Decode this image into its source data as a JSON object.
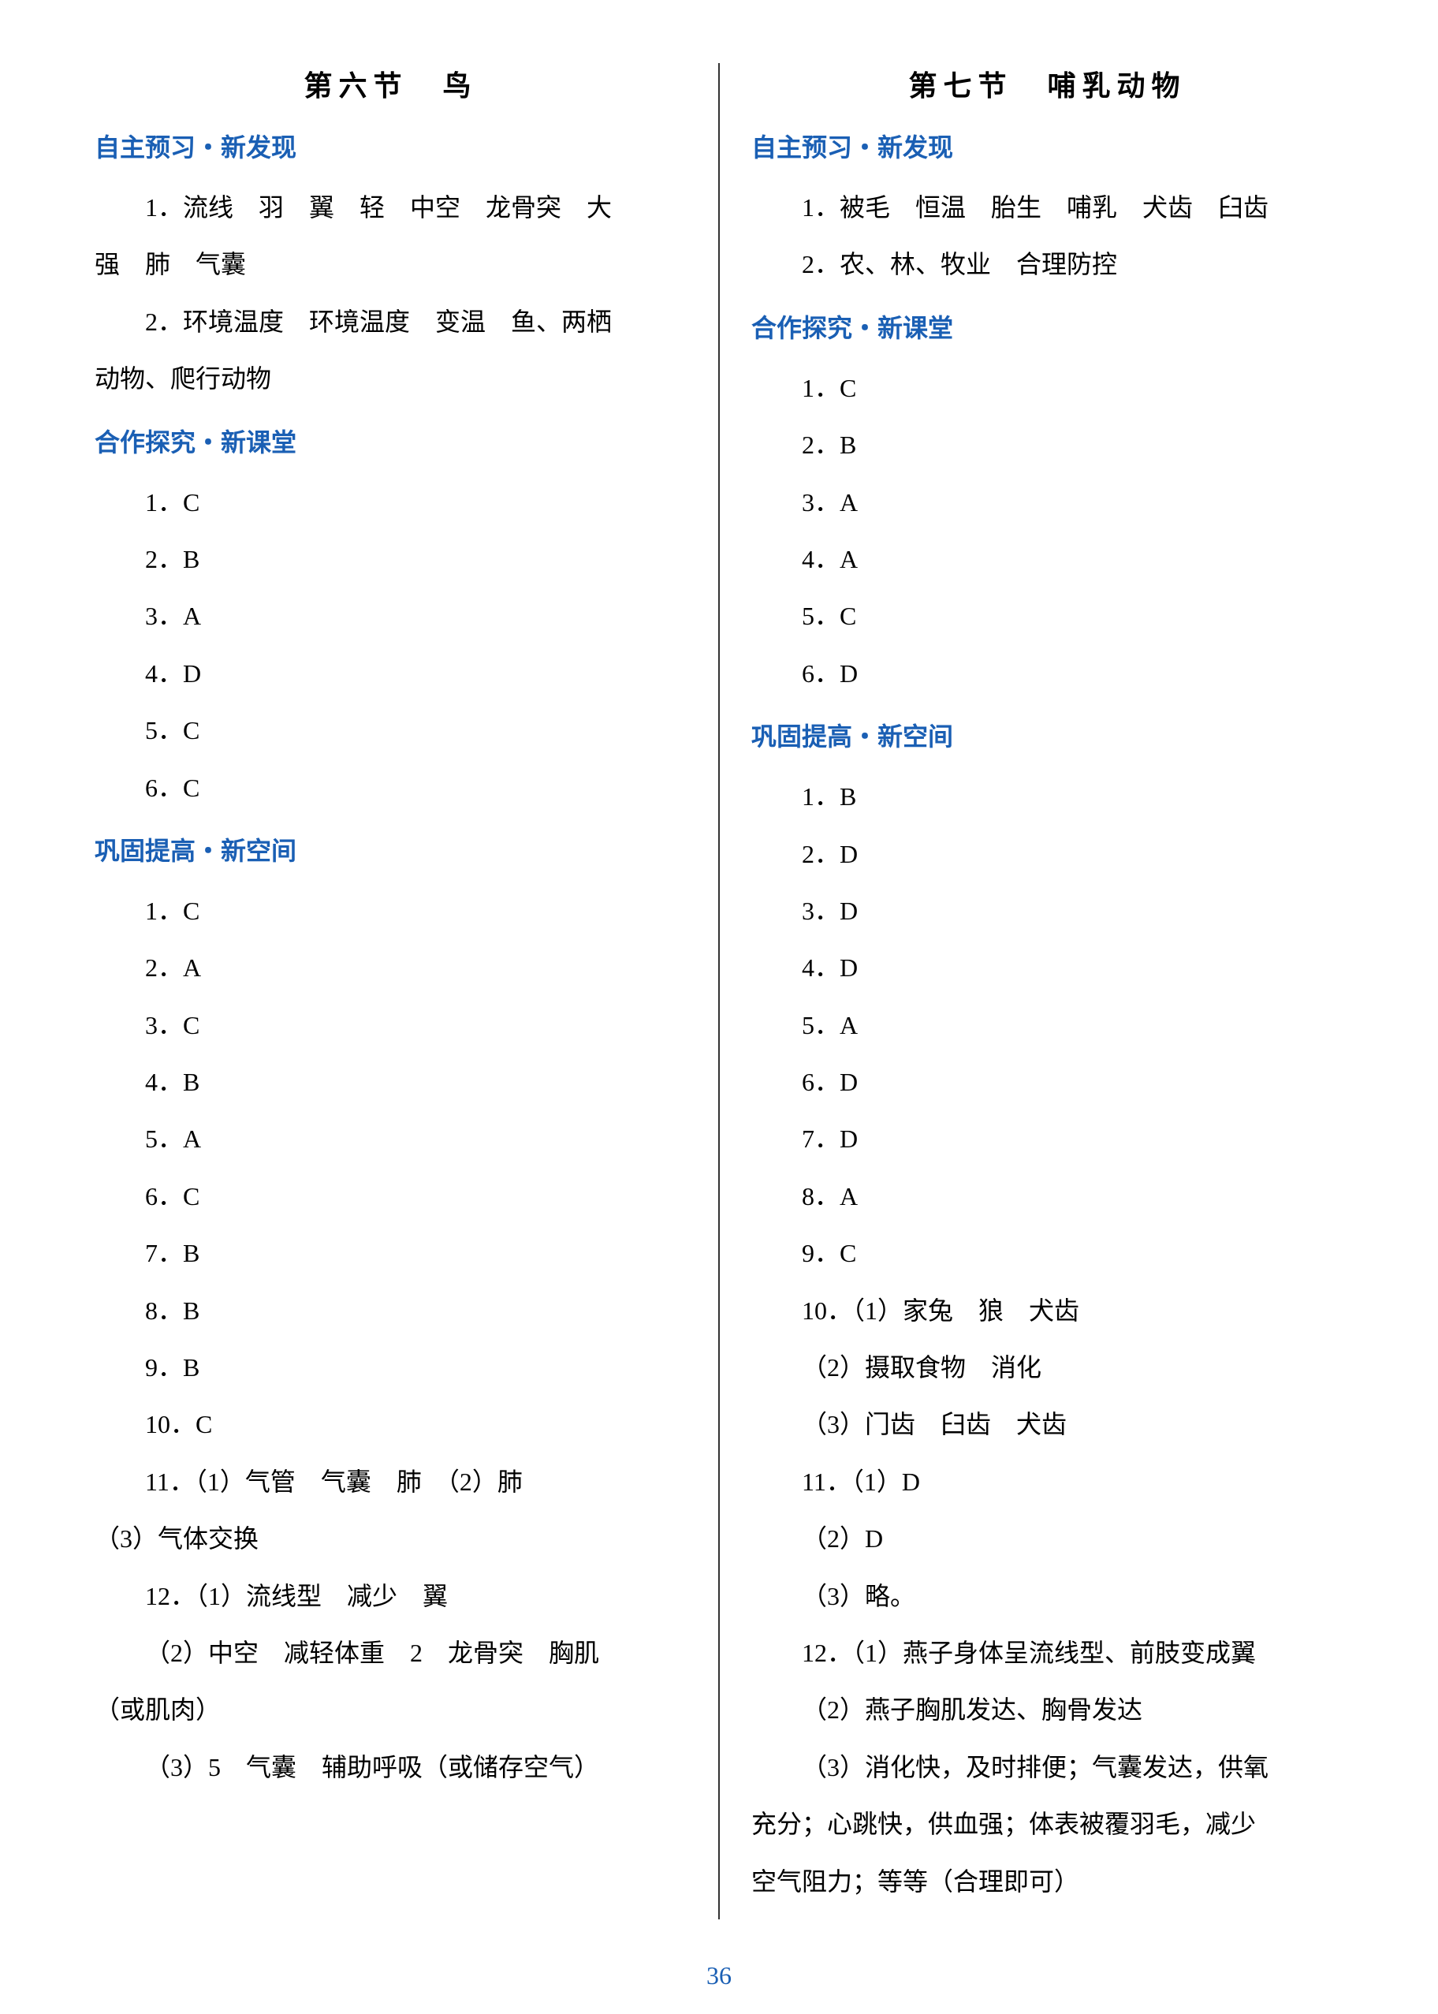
{
  "page_number": "36",
  "colors": {
    "header_blue": "#1a5fb4",
    "text_black": "#000000",
    "divider": "#333333",
    "background": "#ffffff"
  },
  "typography": {
    "title_fontsize": 36,
    "header_fontsize": 32,
    "body_fontsize": 32,
    "line_height": 2.2
  },
  "left": {
    "title": "第六节　鸟",
    "sections": [
      {
        "header": "自主预习・新发现",
        "lines": [
          "1．流线　羽　翼　轻　中空　龙骨突　大",
          "强　肺　气囊",
          "2．环境温度　环境温度　变温　鱼、两栖",
          "动物、爬行动物"
        ],
        "line_types": [
          "indent",
          "continue",
          "indent",
          "continue"
        ]
      },
      {
        "header": "合作探究・新课堂",
        "lines": [
          "1．C",
          "2．B",
          "3．A",
          "4．D",
          "5．C",
          "6．C"
        ],
        "line_types": [
          "indent",
          "indent",
          "indent",
          "indent",
          "indent",
          "indent"
        ]
      },
      {
        "header": "巩固提高・新空间",
        "lines": [
          "1．C",
          "2．A",
          "3．C",
          "4．B",
          "5．A",
          "6．C",
          "7．B",
          "8．B",
          "9．B",
          "10．C",
          "11．（1）气管　气囊　肺　（2）肺",
          "（3）气体交换",
          "12．（1）流线型　减少　翼",
          "（2）中空　减轻体重　2　龙骨突　胸肌",
          "（或肌肉）",
          "（3）5　气囊　辅助呼吸（或储存空气）"
        ],
        "line_types": [
          "indent",
          "indent",
          "indent",
          "indent",
          "indent",
          "indent",
          "indent",
          "indent",
          "indent",
          "indent",
          "indent",
          "continue",
          "indent",
          "indent",
          "continue",
          "indent"
        ]
      }
    ]
  },
  "right": {
    "title": "第七节　哺乳动物",
    "sections": [
      {
        "header": "自主预习・新发现",
        "lines": [
          "1．被毛　恒温　胎生　哺乳　犬齿　臼齿",
          "2．农、林、牧业　合理防控"
        ],
        "line_types": [
          "indent",
          "indent"
        ]
      },
      {
        "header": "合作探究・新课堂",
        "lines": [
          "1．C",
          "2．B",
          "3．A",
          "4．A",
          "5．C",
          "6．D"
        ],
        "line_types": [
          "indent",
          "indent",
          "indent",
          "indent",
          "indent",
          "indent"
        ]
      },
      {
        "header": "巩固提高・新空间",
        "lines": [
          "1．B",
          "2．D",
          "3．D",
          "4．D",
          "5．A",
          "6．D",
          "7．D",
          "8．A",
          "9．C",
          "10．（1）家兔　狼　犬齿",
          "（2）摄取食物　消化",
          "（3）门齿　臼齿　犬齿",
          "11．（1）D",
          "（2）D",
          "（3）略。",
          "12．（1）燕子身体呈流线型、前肢变成翼",
          "（2）燕子胸肌发达、胸骨发达",
          "（3）消化快，及时排便；气囊发达，供氧",
          "充分；心跳快，供血强；体表被覆羽毛，减少",
          "空气阻力；等等（合理即可）"
        ],
        "line_types": [
          "indent",
          "indent",
          "indent",
          "indent",
          "indent",
          "indent",
          "indent",
          "indent",
          "indent",
          "indent",
          "indent",
          "indent",
          "indent",
          "indent",
          "indent",
          "indent",
          "indent",
          "indent",
          "continue",
          "continue"
        ]
      }
    ]
  }
}
